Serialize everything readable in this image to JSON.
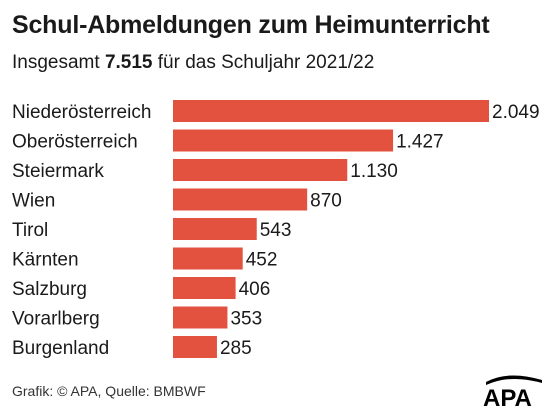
{
  "header": {
    "title": "Schul-Abmeldungen zum Heimunterricht",
    "subtitle_prefix": "Insgesamt ",
    "subtitle_total": "7.515",
    "subtitle_suffix": " für das Schuljahr 2021/22"
  },
  "footer": {
    "source": "Grafik: © APA, Quelle: BMBWF",
    "logo_text": "APA"
  },
  "colors": {
    "bar": "#e2523f",
    "text": "#1a1a1a",
    "logo": "#000000"
  },
  "chart_data": {
    "type": "bar",
    "orientation": "horizontal",
    "categories": [
      "Niederösterreich",
      "Oberösterreich",
      "Steiermark",
      "Wien",
      "Tirol",
      "Kärnten",
      "Salzburg",
      "Vorarlberg",
      "Burgenland"
    ],
    "values": [
      2049,
      1427,
      1130,
      870,
      543,
      452,
      406,
      353,
      285
    ],
    "value_labels": [
      "2.049",
      "1.427",
      "1.130",
      "870",
      "543",
      "452",
      "406",
      "353",
      "285"
    ],
    "grid": false,
    "legend": "none"
  }
}
